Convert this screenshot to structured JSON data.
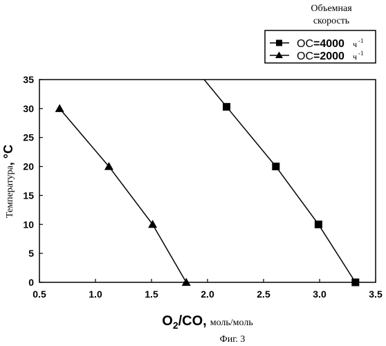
{
  "figure_caption": "Фиг. 3",
  "legend": {
    "title_line1": "Объемная",
    "title_line2": "скорость",
    "items": [
      {
        "prefix": "ОС",
        "value": "=4000",
        "unit": "ч",
        "exponent": "-1",
        "marker": "square-icon"
      },
      {
        "prefix": "ОС",
        "value": "=2000",
        "unit": "ч",
        "exponent": "-1",
        "marker": "triangle-icon"
      }
    ]
  },
  "axes": {
    "x_label_main": "O",
    "x_label_sub": "2",
    "x_label_rest": "/CO,",
    "x_label_unit": "моль/моль",
    "y_label_text": "Температура",
    "y_label_unit": ", °C"
  },
  "colors": {
    "line": "#000000",
    "background": "#ffffff"
  },
  "chart_data": {
    "type": "line",
    "xlim": [
      0.5,
      3.5
    ],
    "ylim": [
      0,
      35
    ],
    "x_ticks": [
      "0.5",
      "1.0",
      "1.5",
      "2.0",
      "2.5",
      "3.0",
      "3.5"
    ],
    "y_ticks": [
      "0",
      "5",
      "10",
      "15",
      "20",
      "25",
      "30",
      "35"
    ],
    "grid": false,
    "legend_position": "top-right, outside plot",
    "series": [
      {
        "marker": "square",
        "points": [
          [
            3.32,
            0
          ],
          [
            2.99,
            10
          ],
          [
            2.61,
            20
          ],
          [
            2.17,
            30.3
          ]
        ],
        "line_extends_to": [
          1.97,
          35
        ]
      },
      {
        "marker": "triangle",
        "points": [
          [
            1.81,
            0
          ],
          [
            1.51,
            10
          ],
          [
            1.12,
            20
          ],
          [
            0.68,
            30
          ]
        ]
      }
    ]
  }
}
